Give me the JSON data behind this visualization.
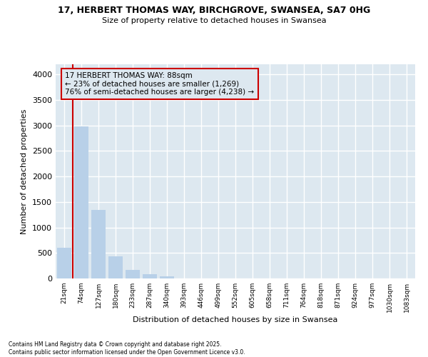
{
  "title_line1": "17, HERBERT THOMAS WAY, BIRCHGROVE, SWANSEA, SA7 0HG",
  "title_line2": "Size of property relative to detached houses in Swansea",
  "xlabel": "Distribution of detached houses by size in Swansea",
  "ylabel": "Number of detached properties",
  "categories": [
    "21sqm",
    "74sqm",
    "127sqm",
    "180sqm",
    "233sqm",
    "287sqm",
    "340sqm",
    "393sqm",
    "446sqm",
    "499sqm",
    "552sqm",
    "605sqm",
    "658sqm",
    "711sqm",
    "764sqm",
    "818sqm",
    "871sqm",
    "924sqm",
    "977sqm",
    "1030sqm",
    "1083sqm"
  ],
  "values": [
    600,
    2980,
    1340,
    430,
    175,
    90,
    40,
    5,
    3,
    0,
    0,
    0,
    0,
    0,
    0,
    0,
    0,
    0,
    0,
    0,
    0
  ],
  "bar_color": "#b8d0e8",
  "vline_x_bar_index": 1,
  "vline_color": "#cc0000",
  "annotation_title": "17 HERBERT THOMAS WAY: 88sqm",
  "annotation_line2": "← 23% of detached houses are smaller (1,269)",
  "annotation_line3": "76% of semi-detached houses are larger (4,238) →",
  "annotation_box_edgecolor": "#cc0000",
  "ylim": [
    0,
    4200
  ],
  "yticks": [
    0,
    500,
    1000,
    1500,
    2000,
    2500,
    3000,
    3500,
    4000
  ],
  "plot_bg_color": "#dde8f0",
  "figure_bg_color": "#ffffff",
  "grid_color": "#ffffff",
  "footer_line1": "Contains HM Land Registry data © Crown copyright and database right 2025.",
  "footer_line2": "Contains public sector information licensed under the Open Government Licence v3.0."
}
